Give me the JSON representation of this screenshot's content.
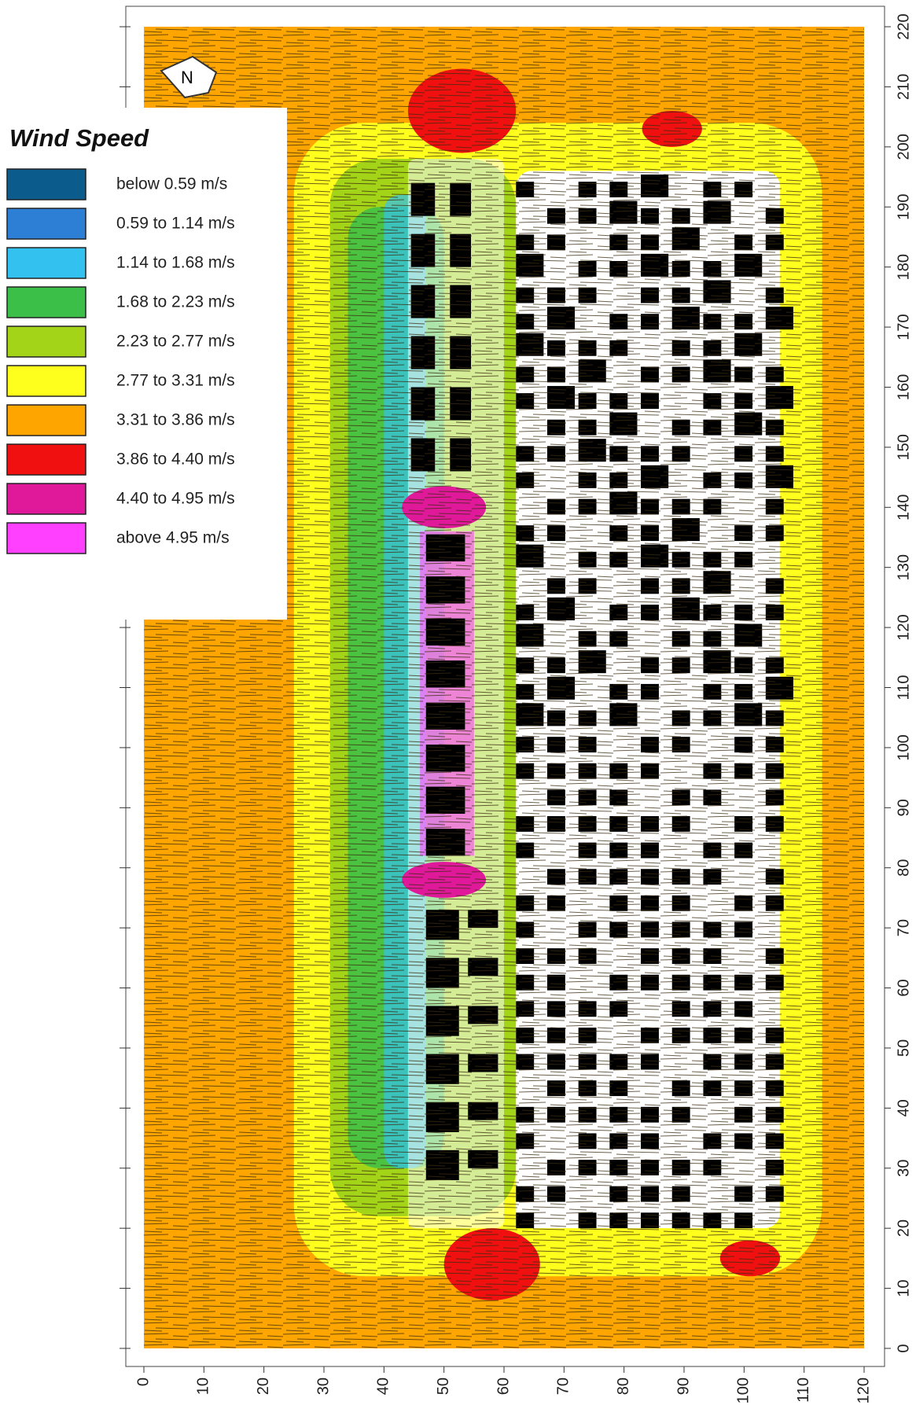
{
  "legend": {
    "title": "Wind Speed",
    "items": [
      {
        "label": "below 0.59 m/s",
        "color": "#0b5c8c"
      },
      {
        "label": "0.59 to 1.14 m/s",
        "color": "#2d7fd6"
      },
      {
        "label": "1.14 to 1.68 m/s",
        "color": "#33c2f0"
      },
      {
        "label": "1.68 to 2.23 m/s",
        "color": "#3cbf48"
      },
      {
        "label": "2.23 to 2.77 m/s",
        "color": "#a3d417"
      },
      {
        "label": "2.77 to 3.31 m/s",
        "color": "#ffff1e"
      },
      {
        "label": "3.31 to 3.86 m/s",
        "color": "#ffa500"
      },
      {
        "label": "3.86 to 4.40 m/s",
        "color": "#f01010"
      },
      {
        "label": "4.40 to 4.95 m/s",
        "color": "#e0189a"
      },
      {
        "label": "above 4.95 m/s",
        "color": "#ff40ff"
      }
    ]
  },
  "compass": "N",
  "axes": {
    "x": {
      "lim": [
        0,
        120
      ],
      "ticks": [
        0,
        10,
        20,
        30,
        40,
        50,
        60,
        70,
        80,
        90,
        100,
        110,
        120
      ]
    },
    "y": {
      "lim": [
        0,
        220
      ],
      "ticks": [
        0,
        10,
        20,
        30,
        40,
        50,
        60,
        70,
        80,
        90,
        100,
        110,
        120,
        130,
        140,
        150,
        160,
        170,
        180,
        190,
        200,
        210,
        220
      ]
    }
  }
}
